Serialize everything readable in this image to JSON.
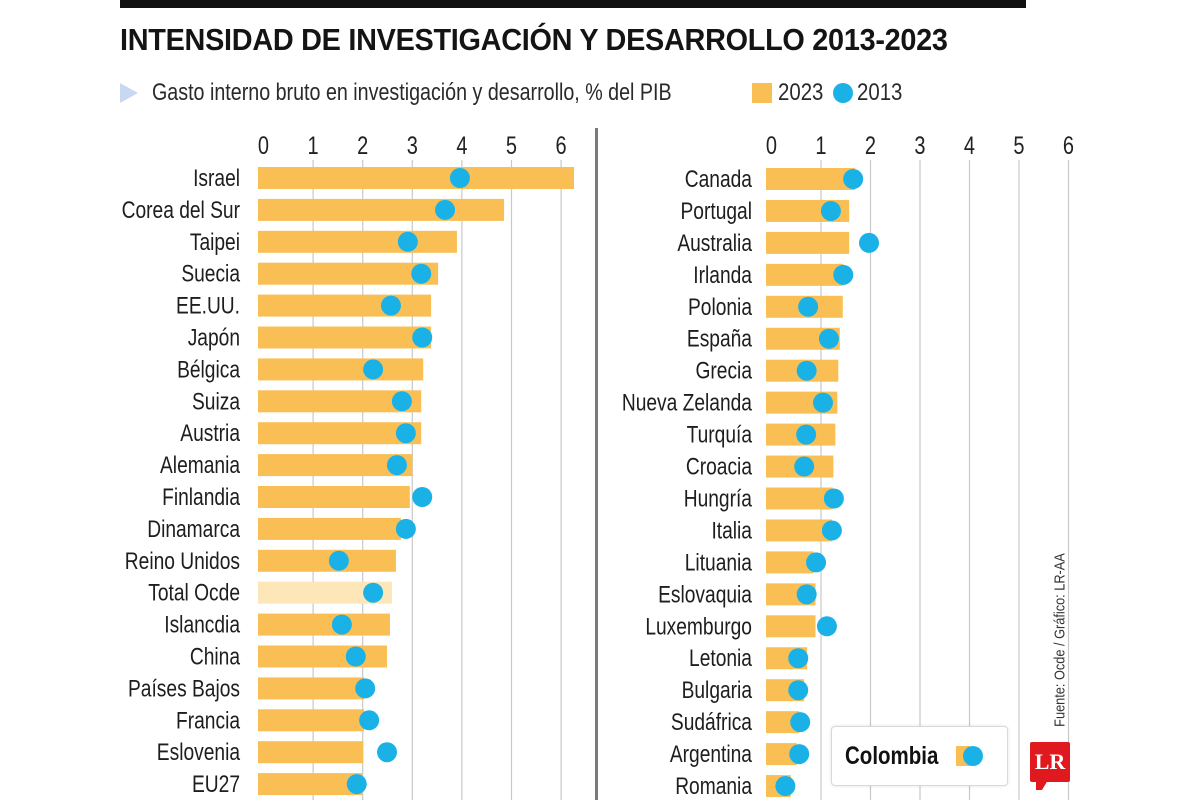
{
  "header": {
    "title": "INTENSIDAD DE INVESTIGACIÓN Y DESARROLLO 2013-2023",
    "subtitle": "Gasto interno bruto en investigación y desarrollo, % del PIB"
  },
  "legend": {
    "items": [
      {
        "label": "2023",
        "shape": "square",
        "color": "#f9bf55"
      },
      {
        "label": "2013",
        "shape": "circle",
        "color": "#1ab2e6"
      }
    ]
  },
  "colors": {
    "bar_2023": "#f9bf55",
    "bar_highlight": "#fde6b8",
    "dot_2013": "#1ab2e6",
    "gridline": "#c8c8c8",
    "logo_red": "#e0191e"
  },
  "callout": {
    "label": "Colombia"
  },
  "source": "Fuente: Ocde / Gráfico: LR-AA",
  "logo": {
    "text": "LR"
  },
  "chart_data": [
    {
      "type": "bar",
      "orientation": "horizontal",
      "title": "INTENSIDAD DE INVESTIGACIÓN Y DESARROLLO 2013-2023",
      "xlabel": "Gasto interno bruto en investigación y desarrollo, % del PIB",
      "xlim": [
        0,
        6
      ],
      "xticks": [
        "0",
        "1",
        "2",
        "3",
        "4",
        "5",
        "6"
      ],
      "grid": true,
      "legend": "top",
      "categories": [
        "Israel",
        "Corea del Sur",
        "Taipei",
        "Suecia",
        "EE.UU.",
        "Japón",
        "Bélgica",
        "Suiza",
        "Austria",
        "Alemania",
        "Finlandia",
        "Dinamarca",
        "Reino Unidos",
        "Total Ocde",
        "Islancdia",
        "China",
        "Países Bajos",
        "Francia",
        "Eslovenia",
        "EU27"
      ],
      "highlight": [
        "Total Ocde"
      ],
      "series": [
        {
          "name": "2023",
          "mark": "bar",
          "values": [
            6.26,
            4.85,
            3.9,
            3.52,
            3.38,
            3.38,
            3.22,
            3.18,
            3.18,
            3.0,
            2.95,
            2.77,
            2.67,
            2.59,
            2.55,
            2.49,
            2.03,
            2.03,
            2.01,
            1.99
          ]
        },
        {
          "name": "2013",
          "mark": "dot",
          "values": [
            3.96,
            3.66,
            2.91,
            3.18,
            2.57,
            3.2,
            2.21,
            2.79,
            2.87,
            2.69,
            3.2,
            2.87,
            1.52,
            2.21,
            1.58,
            1.86,
            2.05,
            2.13,
            2.49,
            1.88
          ]
        }
      ]
    },
    {
      "type": "bar",
      "orientation": "horizontal",
      "xlim": [
        0,
        6
      ],
      "xticks": [
        "0",
        "1",
        "2",
        "3",
        "4",
        "5",
        "6"
      ],
      "grid": true,
      "categories": [
        "Canada",
        "Portugal",
        "Australia",
        "Irlanda",
        "Polonia",
        "España",
        "Grecia",
        "Nueva Zelanda",
        "Turquía",
        "Croacia",
        "Hungría",
        "Italia",
        "Lituania",
        "Eslovaquia",
        "Luxemburgo",
        "Letonia",
        "Bulgaria",
        "Sudáfrica",
        "Argentina",
        "Romania"
      ],
      "series": [
        {
          "name": "2023",
          "mark": "bar",
          "values": [
            1.69,
            1.57,
            1.57,
            1.45,
            1.44,
            1.38,
            1.35,
            1.33,
            1.29,
            1.25,
            1.24,
            1.22,
            0.85,
            0.89,
            0.89,
            0.72,
            0.66,
            0.56,
            0.51,
            0.39
          ]
        },
        {
          "name": "2013",
          "mark": "dot",
          "values": [
            1.65,
            1.2,
            1.97,
            1.45,
            0.74,
            1.16,
            0.71,
            1.04,
            0.7,
            0.66,
            1.26,
            1.22,
            0.9,
            0.71,
            1.12,
            0.54,
            0.54,
            0.58,
            0.56,
            0.28
          ]
        }
      ]
    }
  ]
}
